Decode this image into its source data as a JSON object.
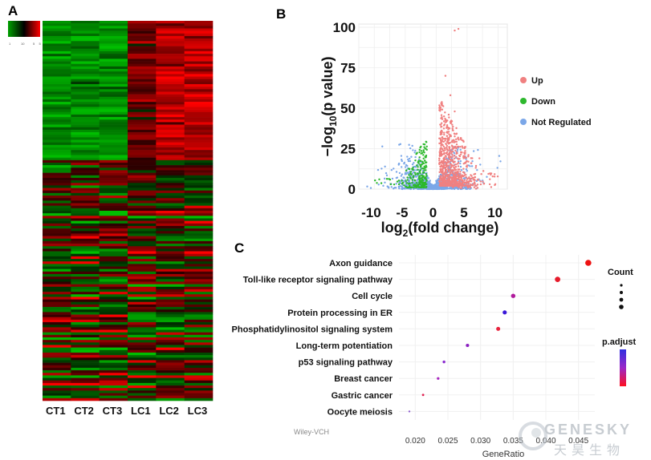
{
  "panels": {
    "a": "A",
    "b": "B",
    "c": "C"
  },
  "watermark": {
    "credit": "Wiley-VCH",
    "logo_main": "GENESKY",
    "logo_sub": "天昊生物"
  },
  "colors": {
    "up": "#f08080",
    "down": "#2db82d",
    "not_regulated": "#7ba7e8",
    "heat_low": "#00a000",
    "heat_mid": "#000000",
    "heat_high": "#ff0000"
  },
  "chart_data": [
    {
      "type": "heatmap",
      "columns": [
        "CT1",
        "CT2",
        "CT3",
        "LC1",
        "LC2",
        "LC3"
      ],
      "color_scale": [
        "#00a000",
        "#000000",
        "#ff0000"
      ],
      "color_key_ticks": [
        "1",
        "",
        "10",
        "",
        "5",
        "5"
      ]
    },
    {
      "type": "scatter",
      "title": "",
      "xlabel": "log2(fold change)",
      "ylabel": "-log10(p value)",
      "xlim": [
        -12,
        12
      ],
      "ylim": [
        0,
        102
      ],
      "xticks": [
        -10,
        -5,
        0,
        5,
        10
      ],
      "yticks": [
        0,
        25,
        50,
        75,
        100
      ],
      "grid": true,
      "legend": "right",
      "series": [
        {
          "name": "Up",
          "color": "#f08080"
        },
        {
          "name": "Down",
          "color": "#2db82d"
        },
        {
          "name": "Not Regulated",
          "color": "#7ba7e8"
        }
      ],
      "highlight_points": [
        [
          3.5,
          98
        ],
        [
          4.1,
          99
        ],
        [
          2.0,
          70
        ],
        [
          2.8,
          58
        ],
        [
          3.5,
          48
        ]
      ]
    },
    {
      "type": "scatter",
      "xlabel": "GeneRatio",
      "xlim": [
        0.0175,
        0.0475
      ],
      "xticks": [
        "0.020",
        "0.025",
        "0.030",
        "0.035",
        "0.040",
        "0.045"
      ],
      "categories": [
        "Axon guidance",
        "Toll-like receptor signaling pathway",
        "Cell cycle",
        "Protein processing in ER",
        "Phosphatidylinositol signaling system",
        "Long-term potentiation",
        "p53 signaling pathway",
        "Breast cancer",
        "Gastric cancer",
        "Oocyte meiosis"
      ],
      "values": [
        0.0465,
        0.0418,
        0.035,
        0.0337,
        0.0327,
        0.028,
        0.0244,
        0.0235,
        0.0212,
        0.0191
      ],
      "point_colors": [
        "#ee1111",
        "#e61b2b",
        "#b01a9c",
        "#3a18d8",
        "#e8233d",
        "#8a1fc0",
        "#8a2ad0",
        "#a828c0",
        "#e02050",
        "#9060d0"
      ],
      "legend": {
        "count_title": "Count",
        "padjust_title": "p.adjust",
        "padjust_colors": [
          "#2f2fe0",
          "#9b28c8",
          "#ff1020"
        ]
      }
    }
  ]
}
